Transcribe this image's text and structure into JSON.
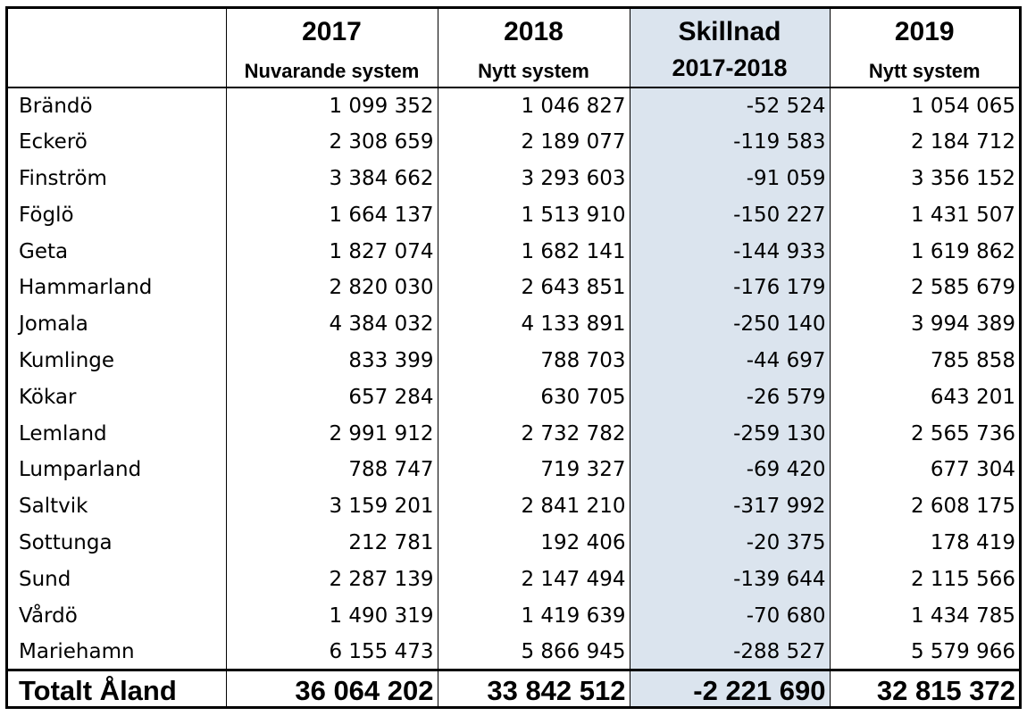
{
  "header": {
    "col_2017": {
      "year": "2017",
      "subtitle": "Nuvarande system"
    },
    "col_2018": {
      "year": "2018",
      "subtitle": "Nytt system"
    },
    "col_diff": {
      "line1": "Skillnad",
      "line2": "2017-2018"
    },
    "col_2019": {
      "year": "2019",
      "subtitle": "Nytt system"
    }
  },
  "rows": [
    {
      "name": "Brändö",
      "v2017": "1 099 352",
      "v2018": "1 046 827",
      "diff": "-52 524",
      "v2019": "1 054 065"
    },
    {
      "name": "Eckerö",
      "v2017": "2 308 659",
      "v2018": "2 189 077",
      "diff": "-119 583",
      "v2019": "2 184 712"
    },
    {
      "name": "Finström",
      "v2017": "3 384 662",
      "v2018": "3 293 603",
      "diff": "-91 059",
      "v2019": "3 356 152"
    },
    {
      "name": "Föglö",
      "v2017": "1 664 137",
      "v2018": "1 513 910",
      "diff": "-150 227",
      "v2019": "1 431 507"
    },
    {
      "name": "Geta",
      "v2017": "1 827 074",
      "v2018": "1 682 141",
      "diff": "-144 933",
      "v2019": "1 619 862"
    },
    {
      "name": "Hammarland",
      "v2017": "2 820 030",
      "v2018": "2 643 851",
      "diff": "-176 179",
      "v2019": "2 585 679"
    },
    {
      "name": "Jomala",
      "v2017": "4 384 032",
      "v2018": "4 133 891",
      "diff": "-250 140",
      "v2019": "3 994 389"
    },
    {
      "name": "Kumlinge",
      "v2017": "833 399",
      "v2018": "788 703",
      "diff": "-44 697",
      "v2019": "785 858"
    },
    {
      "name": "Kökar",
      "v2017": "657 284",
      "v2018": "630 705",
      "diff": "-26 579",
      "v2019": "643 201"
    },
    {
      "name": "Lemland",
      "v2017": "2 991 912",
      "v2018": "2 732 782",
      "diff": "-259 130",
      "v2019": "2 565 736"
    },
    {
      "name": "Lumparland",
      "v2017": "788 747",
      "v2018": "719 327",
      "diff": "-69 420",
      "v2019": "677 304"
    },
    {
      "name": "Saltvik",
      "v2017": "3 159 201",
      "v2018": "2 841 210",
      "diff": "-317 992",
      "v2019": "2 608 175"
    },
    {
      "name": "Sottunga",
      "v2017": "212 781",
      "v2018": "192 406",
      "diff": "-20 375",
      "v2019": "178 419"
    },
    {
      "name": "Sund",
      "v2017": "2 287 139",
      "v2018": "2 147 494",
      "diff": "-139 644",
      "v2019": "2 115 566"
    },
    {
      "name": "Vårdö",
      "v2017": "1 490 319",
      "v2018": "1 419 639",
      "diff": "-70 680",
      "v2019": "1 434 785"
    },
    {
      "name": "Mariehamn",
      "v2017": "6 155 473",
      "v2018": "5 866 945",
      "diff": "-288 527",
      "v2019": "5 579 966"
    }
  ],
  "total": {
    "name": "Totalt Åland",
    "v2017": "36 064 202",
    "v2018": "33 842 512",
    "diff": "-2 221 690",
    "v2019": "32 815 372"
  },
  "colors": {
    "diff_column_bg": "#dbe4ee",
    "grid": "#000000"
  }
}
